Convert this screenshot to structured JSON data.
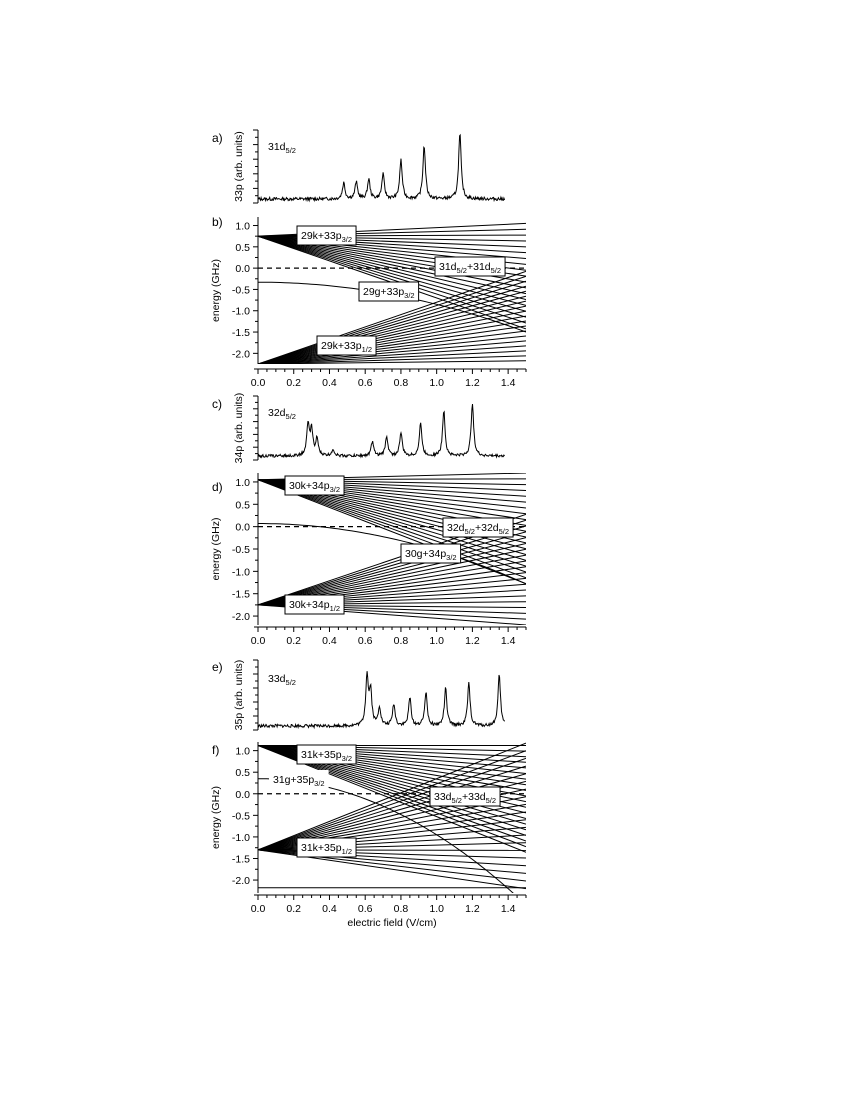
{
  "xaxis": {
    "ticks": [
      "0.0",
      "0.2",
      "0.4",
      "0.6",
      "0.8",
      "1.0",
      "1.2",
      "1.4"
    ],
    "label": "electric field (V/cm)"
  },
  "chart_data": [
    {
      "panel": "a)",
      "type": "line",
      "ylabel": "33p (arb. units)",
      "state_label": [
        "31d",
        "5/2",
        ""
      ],
      "xlim": [
        0,
        1.5
      ],
      "peaks": [
        [
          0.48,
          0.25
        ],
        [
          0.55,
          0.26
        ],
        [
          0.62,
          0.3
        ],
        [
          0.7,
          0.38
        ],
        [
          0.8,
          0.6
        ],
        [
          0.93,
          0.82
        ],
        [
          1.13,
          1.0
        ]
      ],
      "end_x": 1.38
    },
    {
      "panel": "b)",
      "type": "line",
      "ylabel": "energy (GHz)",
      "yticks": [
        "1.0",
        "0.5",
        "0.0",
        "-0.5",
        "-1.0",
        "-1.5",
        "-2.0"
      ],
      "xlim": [
        0,
        1.5
      ],
      "ylim": [
        -2.25,
        1.2
      ],
      "labels": [
        {
          "parts": [
            "29k+33p",
            "3/2",
            ""
          ]
        },
        {
          "parts": [
            "31d",
            "5/2",
            "+31d",
            "5/2",
            ""
          ]
        },
        {
          "parts": [
            "29g+33p",
            "3/2",
            ""
          ]
        },
        {
          "parts": [
            "29k+33p",
            "1/2",
            ""
          ]
        }
      ],
      "manifolds": [
        {
          "e0": 0.75,
          "slope_min": -1.45,
          "slope_max": 0.2,
          "count": 19
        },
        {
          "e0": -2.25,
          "slope_min": 0.05,
          "slope_max": 1.45,
          "count": 19
        }
      ],
      "curves": [
        {
          "e0": -0.33,
          "k": -0.52
        }
      ],
      "pair_level": 0.0,
      "pair_x_end": 1.5
    },
    {
      "panel": "c)",
      "type": "line",
      "ylabel": "34p (arb. units)",
      "state_label": [
        "32d",
        "5/2",
        ""
      ],
      "xlim": [
        0,
        1.5
      ],
      "peaks": [
        [
          0.28,
          0.55
        ],
        [
          0.3,
          0.45
        ],
        [
          0.33,
          0.3
        ],
        [
          0.42,
          0.12
        ],
        [
          0.64,
          0.25
        ],
        [
          0.72,
          0.35
        ],
        [
          0.8,
          0.42
        ],
        [
          0.91,
          0.58
        ],
        [
          1.04,
          0.8
        ],
        [
          1.2,
          0.95
        ]
      ],
      "end_x": 1.38
    },
    {
      "panel": "d)",
      "type": "line",
      "ylabel": "energy (GHz)",
      "yticks": [
        "1.0",
        "0.5",
        "0.0",
        "-0.5",
        "-1.0",
        "-1.5",
        "-2.0"
      ],
      "xlim": [
        0,
        1.5
      ],
      "ylim": [
        -2.2,
        1.2
      ],
      "labels": [
        {
          "parts": [
            "30k+34p",
            "3/2",
            ""
          ]
        },
        {
          "parts": [
            "32d",
            "5/2",
            "+32d",
            "5/2",
            ""
          ]
        },
        {
          "parts": [
            "30g+34p",
            "3/2",
            ""
          ]
        },
        {
          "parts": [
            "30k+34p",
            "1/2",
            ""
          ]
        }
      ],
      "manifolds": [
        {
          "e0": 1.05,
          "slope_min": -1.55,
          "slope_max": 0.1,
          "count": 20
        },
        {
          "e0": -1.75,
          "slope_min": -0.3,
          "slope_max": 1.35,
          "count": 20
        }
      ],
      "curves": [
        {
          "e0": 0.07,
          "k": -0.6
        }
      ],
      "pair_level": 0.0,
      "pair_x_end": 1.5
    },
    {
      "panel": "e)",
      "type": "line",
      "ylabel": "35p (arb. units)",
      "state_label": [
        "33d",
        "5/2",
        ""
      ],
      "xlim": [
        0,
        1.5
      ],
      "peaks": [
        [
          0.61,
          0.8
        ],
        [
          0.63,
          0.55
        ],
        [
          0.68,
          0.3
        ],
        [
          0.76,
          0.35
        ],
        [
          0.85,
          0.45
        ],
        [
          0.94,
          0.55
        ],
        [
          1.05,
          0.6
        ],
        [
          1.18,
          0.68
        ],
        [
          1.35,
          0.82
        ]
      ],
      "end_x": 1.38
    },
    {
      "panel": "f)",
      "type": "line",
      "ylabel": "energy (GHz)",
      "yticks": [
        "1.0",
        "0.5",
        "0.0",
        "-0.5",
        "-1.0",
        "-1.5",
        "-2.0"
      ],
      "xlim": [
        0,
        1.5
      ],
      "ylim": [
        -2.3,
        1.2
      ],
      "labels": [
        {
          "parts": [
            "31k+35p",
            "3/2",
            ""
          ]
        },
        {
          "parts": [
            "31g+35p",
            "3/2",
            ""
          ]
        },
        {
          "parts": [
            "33d",
            "5/2",
            "+33d",
            "5/2",
            ""
          ]
        },
        {
          "parts": [
            "31k+35p",
            "1/2",
            ""
          ]
        }
      ],
      "manifolds": [
        {
          "e0": 1.12,
          "slope_min": -1.65,
          "slope_max": 0.0,
          "count": 20
        },
        {
          "e0": -1.3,
          "slope_min": -0.6,
          "slope_max": 1.65,
          "count": 20
        }
      ],
      "curves": [
        {
          "e0": 0.35,
          "k": -1.3
        },
        {
          "e0": -2.18,
          "k": 0.0
        }
      ],
      "pair_level": 0.0,
      "pair_x_end": 1.5
    }
  ]
}
